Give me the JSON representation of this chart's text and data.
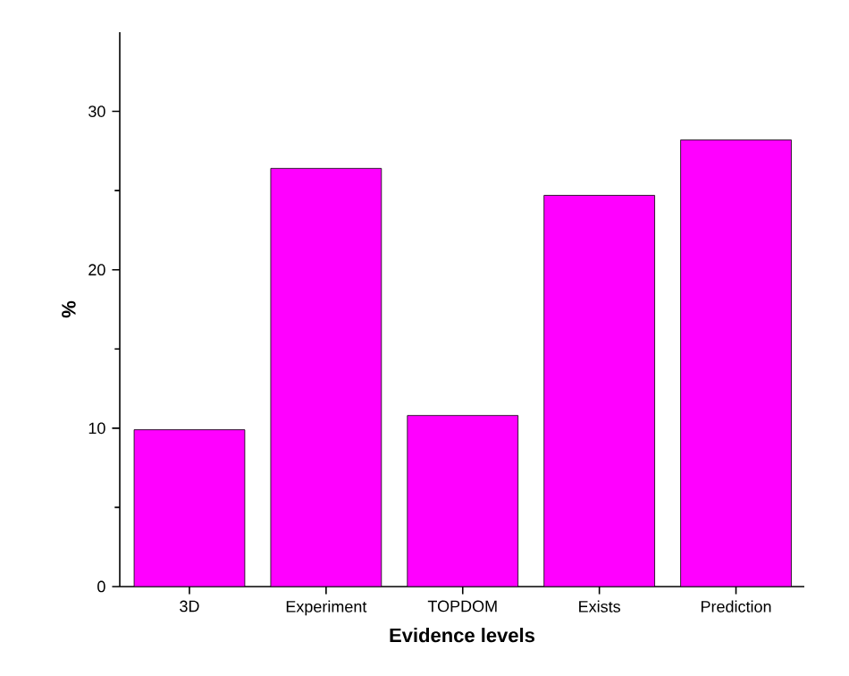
{
  "chart_data": {
    "type": "bar",
    "xlabel": "Evidence levels",
    "ylabel": "%",
    "categories": [
      "3D",
      "Experiment",
      "TOPDOM",
      "Exists",
      "Prediction"
    ],
    "values": [
      9.9,
      26.4,
      10.8,
      24.7,
      28.2
    ],
    "color": "#ff00ff",
    "ylim": [
      0,
      35
    ],
    "yticks": [
      0,
      10,
      20,
      30
    ],
    "grid": false
  }
}
